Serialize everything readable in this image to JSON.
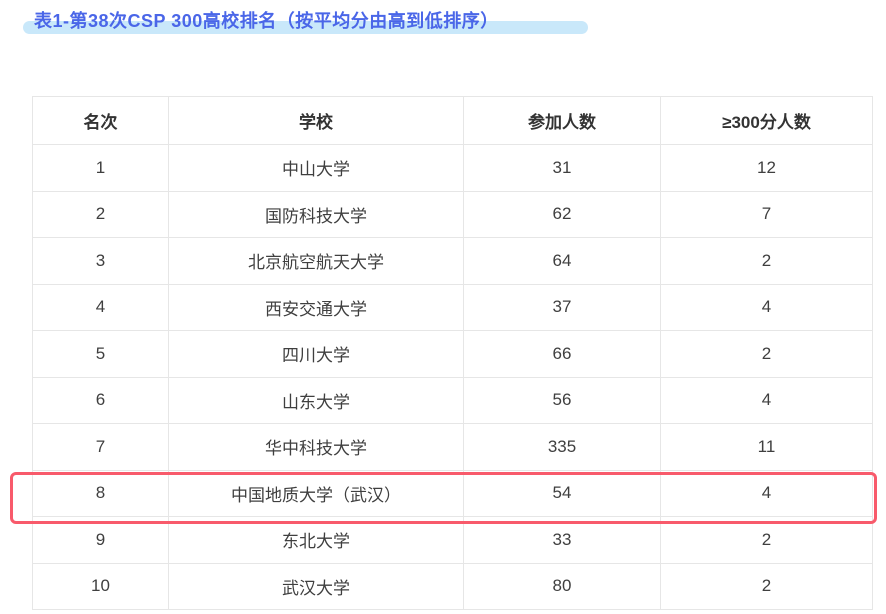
{
  "page": {
    "title": "表1-第38次CSP 300高校排名（按平均分由高到低排序）"
  },
  "colors": {
    "title_text": "#4a66e8",
    "title_highlight_band": "#c9e8fa",
    "table_border": "#e6e6e6",
    "header_text": "#333333",
    "cell_text": "#3f3f3f",
    "row_highlight_border": "#f85a6b"
  },
  "table": {
    "columns": [
      "名次",
      "学校",
      "参加人数",
      "≥300分人数"
    ],
    "rows": [
      {
        "rank": "1",
        "school": "中山大学",
        "participants": "31",
        "above_300": "12"
      },
      {
        "rank": "2",
        "school": "国防科技大学",
        "participants": "62",
        "above_300": "7"
      },
      {
        "rank": "3",
        "school": "北京航空航天大学",
        "participants": "64",
        "above_300": "2"
      },
      {
        "rank": "4",
        "school": "西安交通大学",
        "participants": "37",
        "above_300": "4"
      },
      {
        "rank": "5",
        "school": "四川大学",
        "participants": "66",
        "above_300": "2"
      },
      {
        "rank": "6",
        "school": "山东大学",
        "participants": "56",
        "above_300": "4"
      },
      {
        "rank": "7",
        "school": "华中科技大学",
        "participants": "335",
        "above_300": "11"
      },
      {
        "rank": "8",
        "school": "中国地质大学（武汉）",
        "participants": "54",
        "above_300": "4"
      },
      {
        "rank": "9",
        "school": "东北大学",
        "participants": "33",
        "above_300": "2"
      },
      {
        "rank": "10",
        "school": "武汉大学",
        "participants": "80",
        "above_300": "2"
      }
    ],
    "highlighted_rank": "8"
  }
}
